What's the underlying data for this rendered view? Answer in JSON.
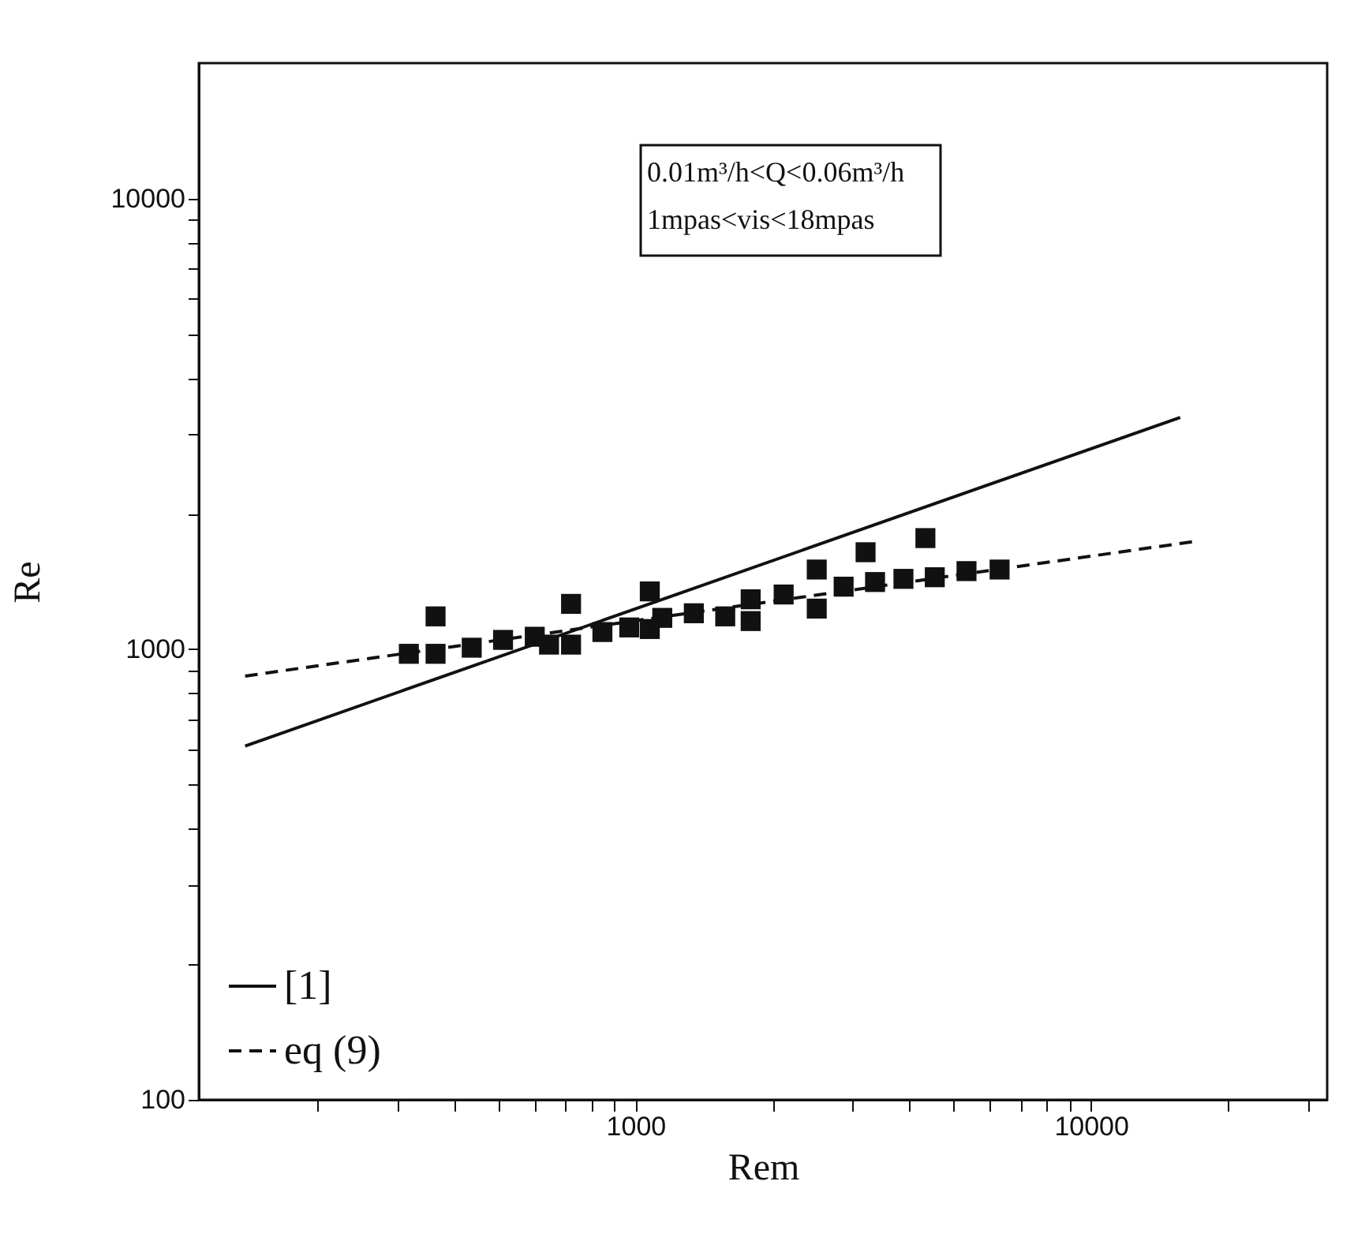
{
  "chart_data": {
    "type": "scatter",
    "xlabel": "Rem",
    "ylabel": "Re",
    "log": "xy",
    "legend": "bottom left",
    "grid": false,
    "xlim": [
      110,
      33000
    ],
    "ylim": [
      100,
      20000
    ],
    "xticks": [
      {
        "value": 200,
        "label": null
      },
      {
        "value": 300,
        "label": null
      },
      {
        "value": 400,
        "label": null
      },
      {
        "value": 500,
        "label": null
      },
      {
        "value": 600,
        "label": null
      },
      {
        "value": 700,
        "label": null
      },
      {
        "value": 800,
        "label": null
      },
      {
        "value": 900,
        "label": null
      },
      1000,
      {
        "value": 2000,
        "label": null
      },
      {
        "value": 3000,
        "label": null
      },
      {
        "value": 4000,
        "label": null
      },
      {
        "value": 5000,
        "label": null
      },
      {
        "value": 6000,
        "label": null
      },
      {
        "value": 7000,
        "label": null
      },
      {
        "value": 8000,
        "label": null
      },
      {
        "value": 9000,
        "label": null
      },
      10000,
      {
        "value": 20000,
        "label": null
      },
      {
        "value": 30000,
        "label": null
      }
    ],
    "yticks": [
      100,
      {
        "value": 200,
        "label": null
      },
      {
        "value": 300,
        "label": null
      },
      {
        "value": 400,
        "label": null
      },
      {
        "value": 500,
        "label": null
      },
      {
        "value": 600,
        "label": null
      },
      {
        "value": 700,
        "label": null
      },
      {
        "value": 800,
        "label": null
      },
      {
        "value": 900,
        "label": null
      },
      1000,
      {
        "value": 2000,
        "label": null
      },
      {
        "value": 3000,
        "label": null
      },
      {
        "value": 4000,
        "label": null
      },
      {
        "value": 5000,
        "label": null
      },
      {
        "value": 6000,
        "label": null
      },
      {
        "value": 7000,
        "label": null
      },
      {
        "value": 8000,
        "label": null
      },
      {
        "value": 9000,
        "label": null
      },
      10000
    ],
    "annotations": [
      "0.01m³/h<Q<0.06m³/h",
      "1mpas<vis<18mpas"
    ],
    "series": [
      {
        "color": "#111111",
        "marker": "square",
        "x": [
          318,
          364,
          364,
          437,
          512,
          601,
          646,
          722,
          722,
          846,
          969,
          1075,
          1075,
          1145,
          1343,
          1574,
          1790,
          1790,
          2115,
          2500,
          2500,
          2864,
          3200,
          3357,
          3875,
          4330,
          4540,
          5330,
          6300
        ],
        "values": [
          977,
          1183,
          977,
          1008,
          1049,
          1066,
          1024,
          1261,
          1024,
          1092,
          1118,
          1344,
          1109,
          1174,
          1202,
          1183,
          1291,
          1155,
          1323,
          1503,
          1231,
          1377,
          1642,
          1410,
          1433,
          1765,
          1445,
          1491,
          1503
        ]
      },
      {
        "type": "line",
        "name": "[1]",
        "color": "#111111",
        "line_style": "solid",
        "marker": "none",
        "x": [
          139,
          15700
        ],
        "values": [
          610,
          3270
        ]
      },
      {
        "type": "line",
        "name": "eq (9)",
        "color": "#111111",
        "line_style": "dashed",
        "marker": "none",
        "x": [
          139,
          17100
        ],
        "values": [
          872,
          1738
        ]
      }
    ]
  }
}
